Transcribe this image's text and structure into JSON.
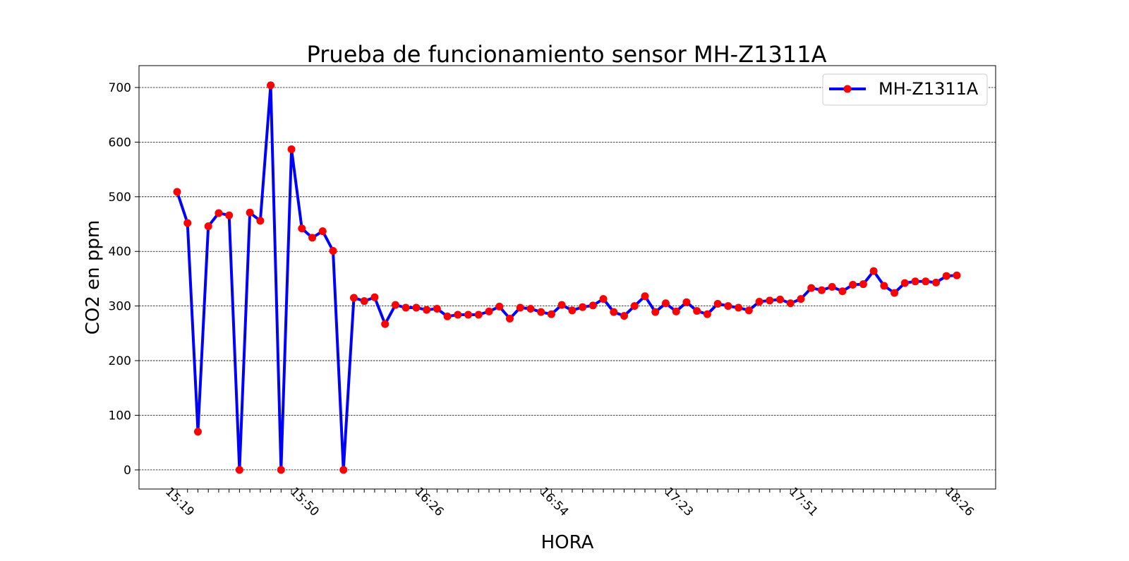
{
  "chart_data": {
    "type": "line",
    "title": "Prueba de funcionamiento sensor MH-Z1311A",
    "xlabel": "HORA",
    "ylabel": "CO2 en ppm",
    "ylim": [
      -35,
      740
    ],
    "yticks": [
      0,
      100,
      200,
      300,
      400,
      500,
      600,
      700
    ],
    "grid": "horizontal-dashed",
    "legend_position": "top-right",
    "xtick_labels": [
      {
        "index": 0,
        "label": "15:19"
      },
      {
        "index": 12,
        "label": "15:50"
      },
      {
        "index": 24,
        "label": "16:26"
      },
      {
        "index": 36,
        "label": "16:54"
      },
      {
        "index": 48,
        "label": "17:23"
      },
      {
        "index": 60,
        "label": "17:51"
      },
      {
        "index": 75,
        "label": "18:26"
      }
    ],
    "series": [
      {
        "name": "MH-Z1311A",
        "line_color": "#0000ff",
        "marker_color": "#ff0000",
        "values": [
          509,
          452,
          70,
          446,
          470,
          466,
          0,
          471,
          456,
          704,
          0,
          587,
          442,
          425,
          437,
          401,
          0,
          315,
          309,
          316,
          267,
          302,
          297,
          297,
          293,
          295,
          281,
          284,
          284,
          284,
          290,
          299,
          277,
          297,
          295,
          289,
          285,
          302,
          292,
          298,
          301,
          313,
          289,
          282,
          300,
          318,
          289,
          305,
          290,
          307,
          291,
          285,
          304,
          300,
          297,
          292,
          308,
          310,
          312,
          305,
          313,
          333,
          329,
          335,
          327,
          339,
          340,
          364,
          337,
          324,
          342,
          345,
          345,
          343,
          355,
          356
        ]
      }
    ]
  }
}
